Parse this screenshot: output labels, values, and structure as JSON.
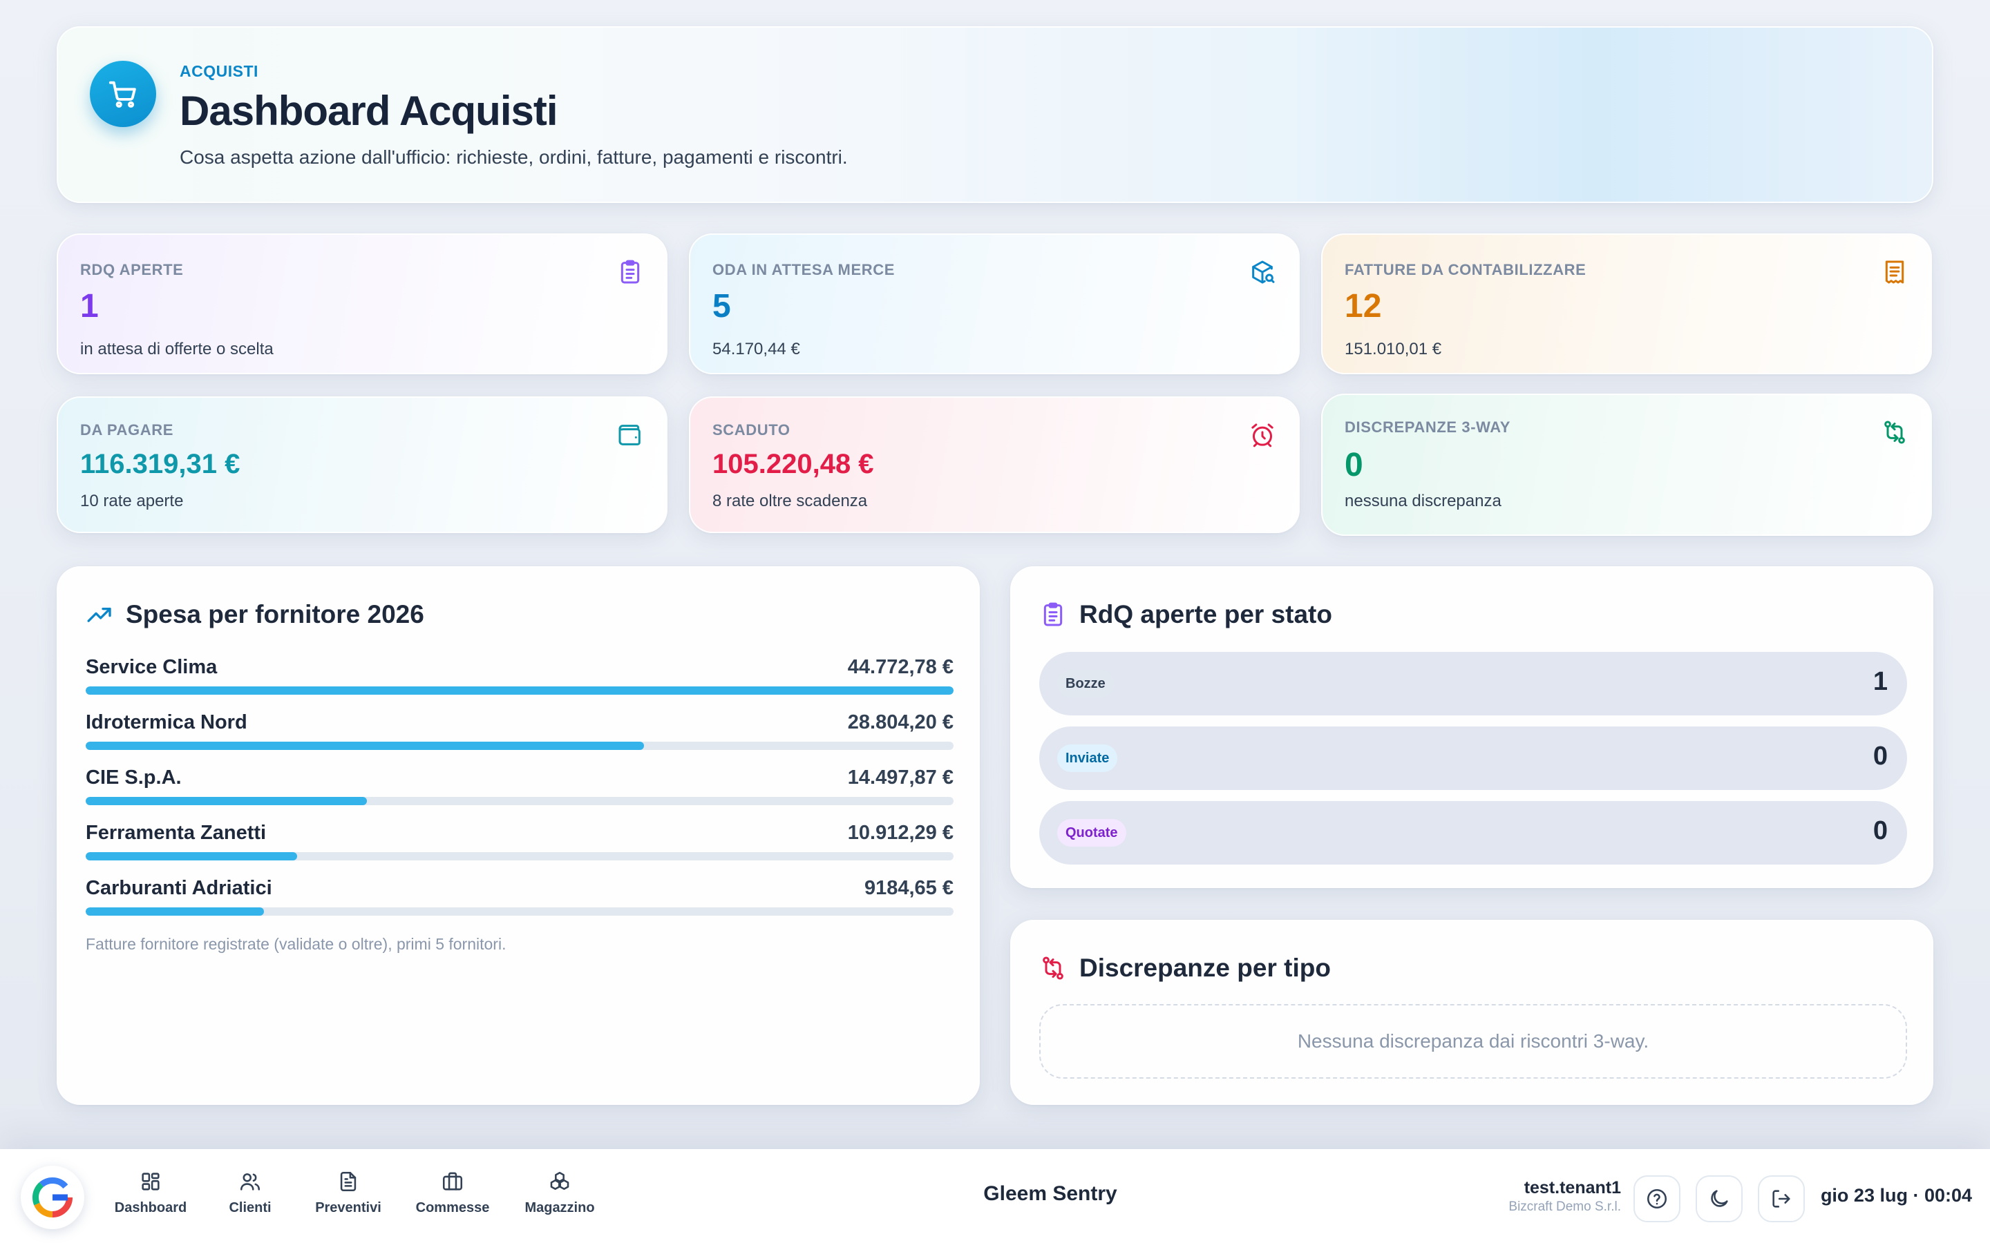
{
  "hero": {
    "eyebrow": "ACQUISTI",
    "title": "Dashboard Acquisti",
    "subtitle": "Cosa aspetta azione dall'ufficio: richieste, ordini, fatture, pagamenti e riscontri.",
    "icon": "cart-icon",
    "accent": "#0b86c8"
  },
  "kpis": {
    "rdq": {
      "label": "RDQ APERTE",
      "value": "1",
      "sub": "in attesa di offerte o scelta",
      "icon": "clipboard-list-icon",
      "color": "#7c3aed"
    },
    "oda": {
      "label": "ODA IN ATTESA MERCE",
      "value": "5",
      "sub": "54.170,44 €",
      "icon": "package-search-icon",
      "color": "#0a7fc4"
    },
    "fatture": {
      "label": "FATTURE DA CONTABILIZZARE",
      "value": "12",
      "sub": "151.010,01 €",
      "icon": "receipt-icon",
      "color": "#d97706"
    },
    "pagare": {
      "label": "DA PAGARE",
      "value": "116.319,31 €",
      "sub": "10 rate aperte",
      "icon": "wallet-icon",
      "color": "#0e98aa"
    },
    "scaduto": {
      "label": "SCADUTO",
      "value": "105.220,48 €",
      "sub": "8 rate oltre scadenza",
      "icon": "alarm-clock-icon",
      "color": "#e11d48"
    },
    "discrepanze": {
      "label": "DISCREPANZE 3-WAY",
      "value": "0",
      "sub": "nessuna discrepanza",
      "icon": "swap-arrows-icon",
      "color": "#059669"
    }
  },
  "spesa": {
    "title": "Spesa per fornitore 2026",
    "icon": "trending-up-icon",
    "note": "Fatture fornitore registrate (validate o oltre), primi 5 fornitori.",
    "bar_color": "#34b2ea"
  },
  "chart_data": {
    "type": "bar",
    "categories": [
      "Service Clima",
      "Idrotermica Nord",
      "CIE S.p.A.",
      "Ferramenta Zanetti",
      "Carburanti Adriatici"
    ],
    "values": [
      44772.78,
      28804.2,
      14497.87,
      10912.29,
      9184.65
    ],
    "value_labels": [
      "44.772,78 €",
      "28.804,20 €",
      "14.497,87 €",
      "10.912,29 €",
      "9184,65 €"
    ],
    "title": "Spesa per fornitore 2026",
    "xlabel": "",
    "ylabel": ""
  },
  "rdq_stato": {
    "title": "RdQ aperte per stato",
    "icon": "clipboard-list-icon",
    "rows": [
      {
        "label": "Bozze",
        "count": "1",
        "pill_bg": "#e2e8f0",
        "pill_fg": "#334155"
      },
      {
        "label": "Inviate",
        "count": "0",
        "pill_bg": "#e0f2fe",
        "pill_fg": "#0369a1"
      },
      {
        "label": "Quotate",
        "count": "0",
        "pill_bg": "#f3e8ff",
        "pill_fg": "#7e22ce"
      }
    ]
  },
  "disc_tipo": {
    "title": "Discrepanze per tipo",
    "icon": "git-compare-icon",
    "empty": "Nessuna discrepanza dai riscontri 3-way."
  },
  "bottombar": {
    "nav": [
      {
        "label": "Dashboard",
        "icon": "dashboard-grid-icon"
      },
      {
        "label": "Clienti",
        "icon": "users-icon"
      },
      {
        "label": "Preventivi",
        "icon": "document-icon"
      },
      {
        "label": "Commesse",
        "icon": "briefcase-icon"
      },
      {
        "label": "Magazzino",
        "icon": "boxes-icon"
      }
    ],
    "app_name": "Gleem Sentry",
    "user_name": "test.tenant1",
    "org_name": "Bizcraft Demo S.r.l.",
    "clock": "gio 23 lug · 00:04"
  }
}
